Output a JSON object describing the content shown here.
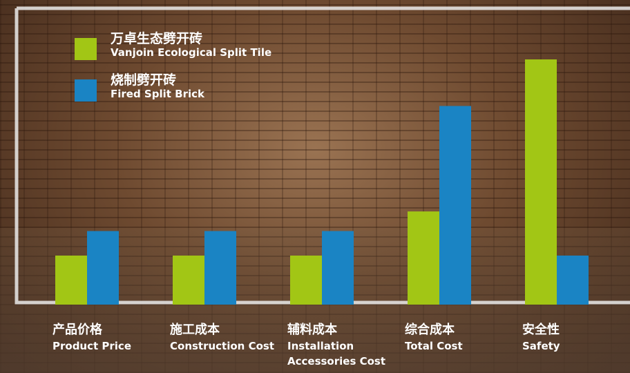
{
  "chart_data": {
    "type": "bar",
    "categories": [
      "产品价格",
      "施工成本",
      "辅料成本",
      "综合成本",
      "安全性"
    ],
    "categories_en": [
      "Product Price",
      "Construction Cost",
      "Installation Accessories Cost",
      "Total Cost",
      "Safety"
    ],
    "series": [
      {
        "name": "万卓生态劈开砖",
        "name_en": "Vanjoin Ecological Split Tile",
        "color": "#a2c615",
        "values": [
          2,
          2,
          2,
          3.8,
          10
        ]
      },
      {
        "name": "烧制劈开砖",
        "name_en": "Fired Split Brick",
        "color": "#1a84c4",
        "values": [
          3,
          3,
          3,
          8.1,
          2
        ]
      }
    ]
  }
}
